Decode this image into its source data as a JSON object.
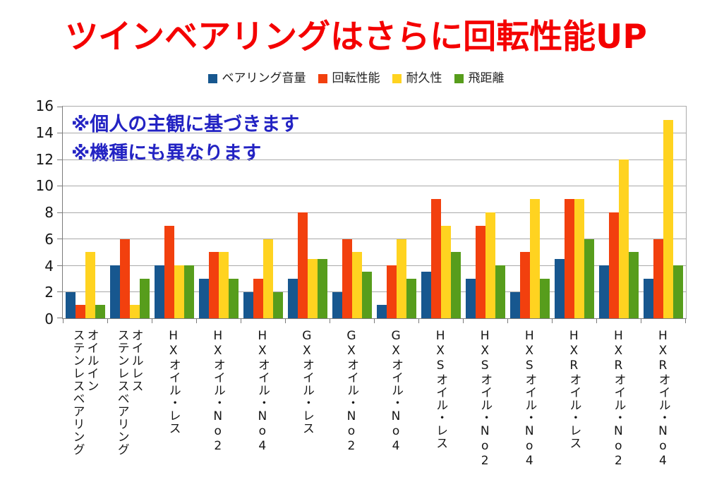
{
  "title": "ツインベアリングはさらに回転性能UP",
  "title_color": "#f40000",
  "annotation": {
    "line1": "※個人の主観に基づきます",
    "line2": "※機種にも異なります",
    "color": "#2323c3"
  },
  "chart_data": {
    "type": "bar",
    "title": "ツインベアリングはさらに回転性能UP",
    "categories": [
      "オイルイン\nステンレスベアリング",
      "オイルレス\nステンレスベアリング",
      "HXオイル・レス",
      "HXオイル・No2",
      "HXオイル・No4",
      "GXオイル・レス",
      "GXオイル・No2",
      "GXオイル・No4",
      "HXSオイル・レス",
      "HXSオイル・No2",
      "HXSオイル・No4",
      "HXRオイル・レス",
      "HXRオイル・No2",
      "HXRオイル・No4"
    ],
    "series": [
      {
        "name": "ベアリング音量",
        "color": "#17578f",
        "values": [
          2,
          4,
          4,
          3,
          2,
          3,
          2,
          1,
          3.5,
          3,
          2,
          4.5,
          4,
          3
        ]
      },
      {
        "name": "回転性能",
        "color": "#f2400e",
        "values": [
          1,
          6,
          7,
          5,
          3,
          8,
          6,
          4,
          9,
          7,
          5,
          9,
          8,
          6
        ]
      },
      {
        "name": "耐久性",
        "color": "#ffd320",
        "values": [
          5,
          1,
          4,
          5,
          6,
          4.5,
          5,
          6,
          7,
          8,
          9,
          9,
          12,
          15
        ]
      },
      {
        "name": "飛距離",
        "color": "#579d1c",
        "values": [
          1,
          3,
          4,
          3,
          2,
          4.5,
          3.5,
          3,
          5,
          4,
          3,
          6,
          5,
          4
        ]
      }
    ],
    "xlabel": "",
    "ylabel": "",
    "ylim": [
      0,
      16
    ],
    "yticks": [
      0,
      2,
      4,
      6,
      8,
      10,
      12,
      14,
      16
    ],
    "grid": true,
    "legend_position": "top"
  }
}
